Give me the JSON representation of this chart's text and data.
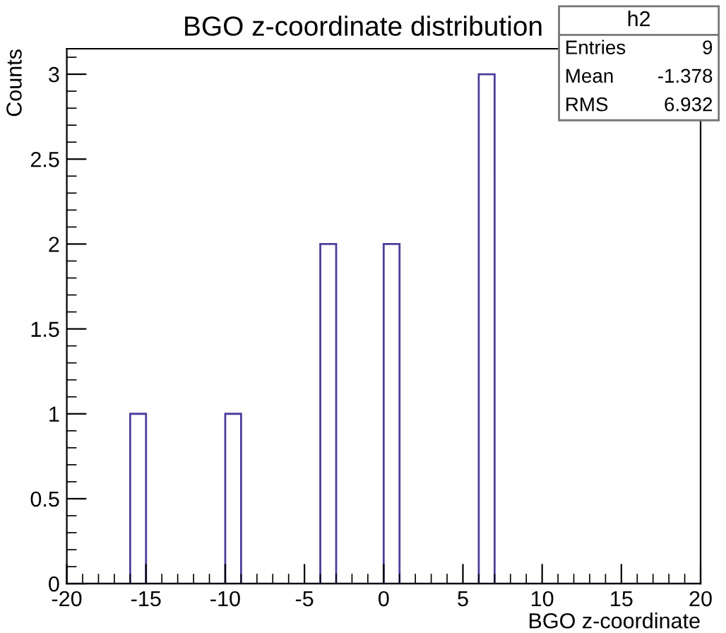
{
  "chart_data": {
    "type": "histogram",
    "title": "BGO z-coordinate distribution",
    "xlabel": "BGO z-coordinate",
    "ylabel": "Counts",
    "bins": [
      -20,
      -19,
      -18,
      -17,
      -16,
      -15,
      -14,
      -13,
      -12,
      -11,
      -10,
      -9,
      -8,
      -7,
      -6,
      -5,
      -4,
      -3,
      -2,
      -1,
      0,
      1,
      2,
      3,
      4,
      5,
      6,
      7,
      8,
      9,
      10,
      11,
      12,
      13,
      14,
      15,
      16,
      17,
      18,
      19,
      20
    ],
    "values": [
      0,
      0,
      0,
      0,
      1,
      0,
      0,
      0,
      0,
      0,
      1,
      0,
      0,
      0,
      0,
      0,
      2,
      0,
      0,
      0,
      2,
      0,
      0,
      0,
      0,
      0,
      3,
      0,
      0,
      0,
      0,
      0,
      0,
      0,
      0,
      0,
      0,
      0,
      0,
      0
    ],
    "color": "#4a3f9c",
    "xlim": [
      -20,
      20
    ],
    "xticks": [
      {
        "value": -20,
        "label": "-20"
      },
      {
        "value": -15,
        "label": "-15"
      },
      {
        "value": -10,
        "label": "-10"
      },
      {
        "value": -5,
        "label": "-5"
      },
      0,
      5,
      10,
      15,
      20
    ],
    "ylim": [
      0,
      3.15
    ],
    "yticks": [
      0,
      0.5,
      1,
      1.5,
      2,
      2.5,
      3
    ],
    "annotations": [
      "h2",
      "Entries",
      "9",
      "Mean",
      "-1.378",
      "RMS",
      "6.932"
    ]
  }
}
